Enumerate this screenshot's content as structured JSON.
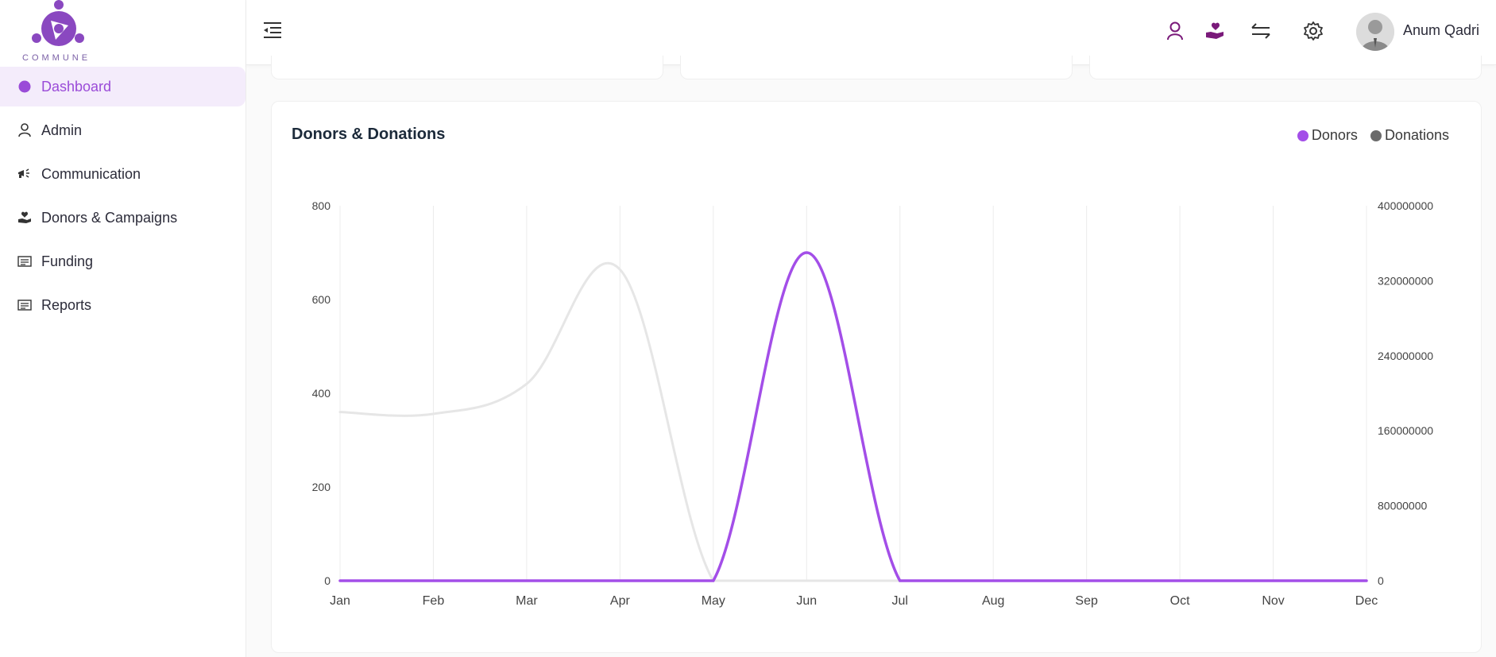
{
  "app": {
    "logo_text": "COMMUNE"
  },
  "sidebar": {
    "items": [
      {
        "label": "Dashboard",
        "icon": "dashboard-icon",
        "active": true
      },
      {
        "label": "Admin",
        "icon": "user-icon",
        "active": false
      },
      {
        "label": "Communication",
        "icon": "megaphone-icon",
        "active": false
      },
      {
        "label": "Donors & Campaigns",
        "icon": "hand-heart-icon",
        "active": false
      },
      {
        "label": "Funding",
        "icon": "list-icon",
        "active": false
      },
      {
        "label": "Reports",
        "icon": "list-icon",
        "active": false
      }
    ]
  },
  "header": {
    "user_name": "Anum Qadri"
  },
  "colors": {
    "accent": "#9a4bd8",
    "donors": "#a34ee8",
    "donations": "#6b6b6b",
    "donations_line": "#e6e6e6"
  },
  "card": {
    "title": "Donors & Donations",
    "legend": [
      {
        "label": "Donors",
        "color": "#a34ee8"
      },
      {
        "label": "Donations",
        "color": "#6b6b6b"
      }
    ]
  },
  "chart_data": {
    "type": "line",
    "title": "Donors & Donations",
    "categories": [
      "Jan",
      "Feb",
      "Mar",
      "Apr",
      "May",
      "Jun",
      "Jul",
      "Aug",
      "Sep",
      "Oct",
      "Nov",
      "Dec"
    ],
    "y_left": {
      "ticks": [
        "0",
        "200",
        "400",
        "600",
        "800"
      ],
      "range": [
        0,
        800
      ]
    },
    "y_right": {
      "ticks": [
        "0",
        "80000000",
        "160000000",
        "240000000",
        "320000000",
        "400000000"
      ],
      "range": [
        0,
        400000000
      ]
    },
    "series": [
      {
        "name": "Donors",
        "axis": "left",
        "color": "#a34ee8",
        "values": [
          0,
          0,
          0,
          0,
          0,
          700,
          0,
          0,
          0,
          0,
          0,
          0
        ]
      },
      {
        "name": "Donations",
        "axis": "right",
        "color": "#e6e6e6",
        "values": [
          180000000,
          178000000,
          210000000,
          332000000,
          0,
          0,
          0,
          0,
          0,
          0,
          0,
          0
        ]
      }
    ],
    "grid": "vertical"
  }
}
